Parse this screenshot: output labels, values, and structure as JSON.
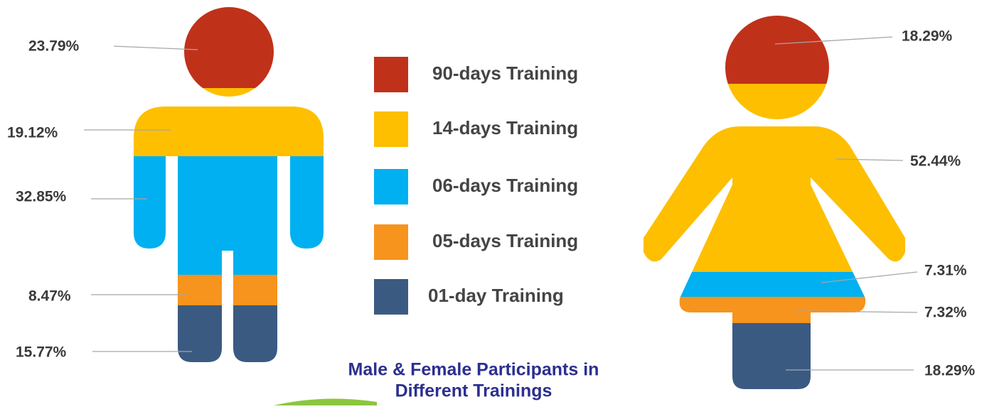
{
  "chart_data": {
    "type": "pictogram",
    "title": [
      "Male & Female Participants in",
      "Different Trainings"
    ],
    "categories": [
      "90-days Training",
      "14-days Training",
      "06-days Training",
      "05-days Training",
      "01-day Training"
    ],
    "colors": [
      "#c0311a",
      "#fdbf00",
      "#00b0f0",
      "#f7941d",
      "#3b5a82"
    ],
    "series": [
      {
        "values": [
          23.79,
          19.12,
          32.85,
          8.47,
          15.77
        ],
        "value_labels": [
          "23.79%",
          "19.12%",
          "32.85%",
          "8.47%",
          "15.77%"
        ]
      },
      {
        "values": [
          18.29,
          52.44,
          7.31,
          7.32,
          18.29
        ],
        "value_labels": [
          "18.29%",
          "52.44%",
          "7.31%",
          "7.32%",
          "18.29%"
        ]
      }
    ]
  }
}
